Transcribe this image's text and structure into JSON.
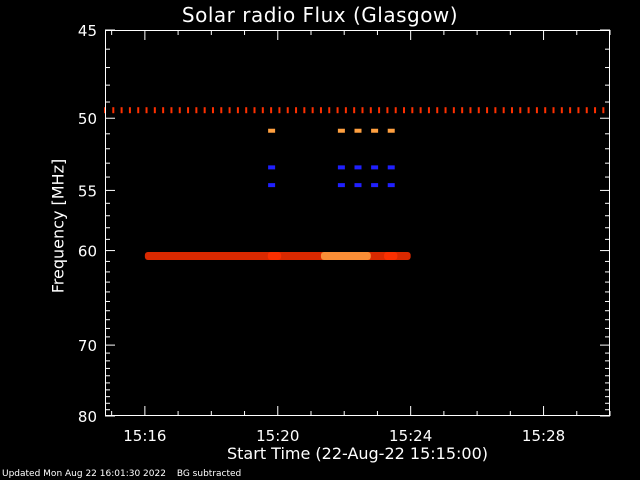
{
  "chart_data": {
    "type": "heatmap",
    "title": "Solar radio Flux (Glasgow)",
    "xlabel": "Start Time (22-Aug-22 15:15:00)",
    "ylabel": "Frequency [MHz]",
    "x_range_minutes": [
      15.25,
      15.5
    ],
    "x_ticks": [
      {
        "minute": 16,
        "label": "15:16"
      },
      {
        "minute": 20,
        "label": "15:20"
      },
      {
        "minute": 24,
        "label": "15:24"
      },
      {
        "minute": 28,
        "label": "15:28"
      }
    ],
    "ylim": [
      45,
      80
    ],
    "y_ticks": [
      45,
      50,
      55,
      60,
      70,
      80
    ],
    "colormap": {
      "low": "#000000",
      "mid": "#2020ff",
      "high": "#ff3000",
      "peak": "#ffa040"
    },
    "features": [
      {
        "kind": "band",
        "freq_mhz": 60.5,
        "start_min": 16.0,
        "end_min": 24.0,
        "intensity": 0.55
      },
      {
        "kind": "band",
        "freq_mhz": 60.5,
        "start_min": 21.3,
        "end_min": 22.8,
        "intensity": 0.95
      },
      {
        "kind": "band",
        "freq_mhz": 60.5,
        "start_min": 19.7,
        "end_min": 20.1,
        "intensity": 0.8
      },
      {
        "kind": "band",
        "freq_mhz": 60.5,
        "start_min": 23.2,
        "end_min": 23.6,
        "intensity": 0.85
      },
      {
        "kind": "dotted_line",
        "freq_mhz": 49.5,
        "start_min": 14.8,
        "end_min": 30.0,
        "intensity": 0.5
      },
      {
        "kind": "spots",
        "freq_mhz": 50.8,
        "minutes": [
          19.8,
          21.9,
          22.4,
          22.9,
          23.4
        ],
        "intensity": 1.0
      },
      {
        "kind": "spots",
        "freq_mhz": 53.3,
        "minutes": [
          19.8,
          21.9,
          22.4,
          22.9,
          23.4
        ],
        "intensity": 0.45
      },
      {
        "kind": "spots",
        "freq_mhz": 54.6,
        "minutes": [
          19.8,
          21.9,
          22.4,
          22.9,
          23.4
        ],
        "intensity": 0.45
      }
    ]
  },
  "footer": {
    "updated": "Updated Mon Aug 22 16:01:30 2022",
    "note": "BG subtracted"
  }
}
